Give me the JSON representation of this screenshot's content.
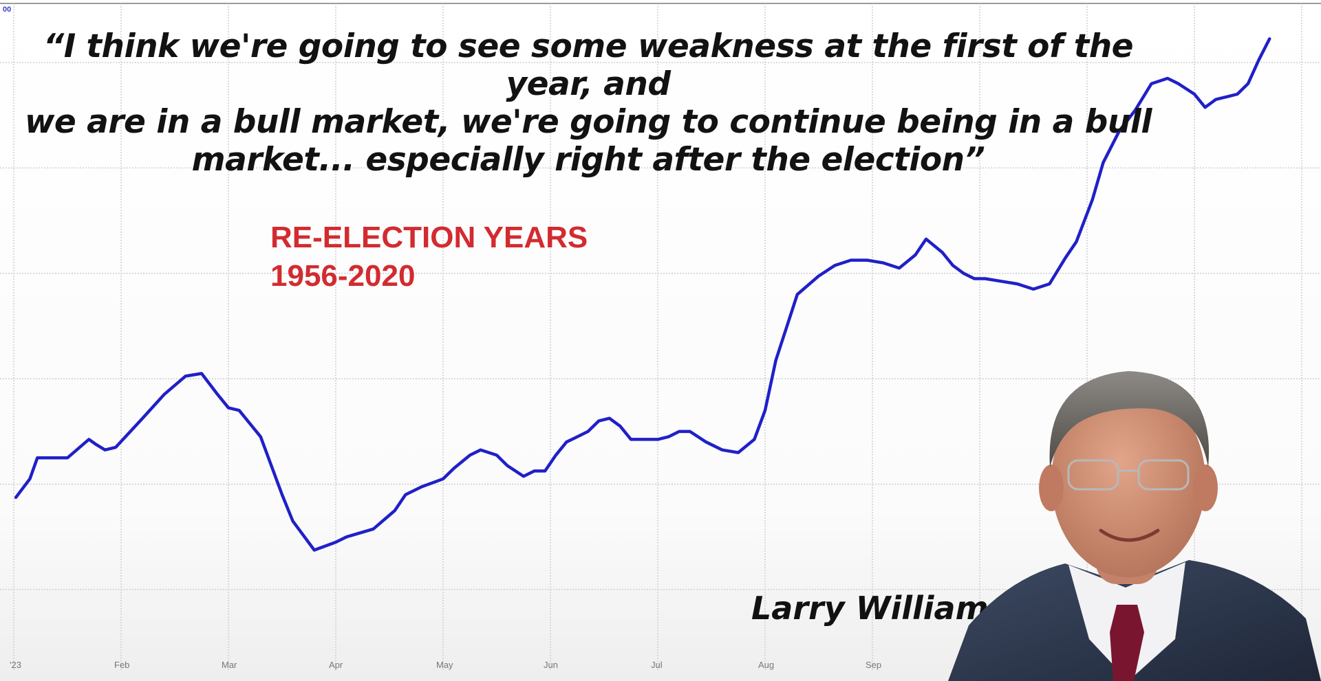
{
  "quote": {
    "lines": [
      "“I think we're going to see some weakness at the first of the year, and",
      "we are in a bull market, we're going to continue being in a bull",
      "market... especially right after the election”"
    ]
  },
  "speaker": {
    "name": "Larry Williams"
  },
  "chart_data": {
    "type": "line",
    "title": "",
    "xlabel": "",
    "ylabel": "",
    "annotation": [
      "RE-ELECTION YEARS",
      "1956-2020"
    ],
    "corner_tick_label": "00",
    "x_tick_labels": [
      "'23",
      "Feb",
      "Mar",
      "Apr",
      "May",
      "Jun",
      "Jul",
      "Aug",
      "Sep"
    ],
    "grid": true,
    "legend": "none",
    "xlim": [
      0,
      12
    ],
    "ylim": [
      0,
      100
    ],
    "series": [
      {
        "color": "#2020c8",
        "x": [
          0.02,
          0.15,
          0.22,
          0.5,
          0.7,
          0.77,
          0.85,
          0.95,
          1.2,
          1.4,
          1.6,
          1.75,
          1.9,
          2.0,
          2.1,
          2.3,
          2.5,
          2.6,
          2.8,
          3.0,
          3.1,
          3.35,
          3.55,
          3.65,
          3.8,
          4.0,
          4.1,
          4.25,
          4.35,
          4.5,
          4.6,
          4.75,
          4.85,
          4.95,
          5.05,
          5.15,
          5.25,
          5.35,
          5.45,
          5.55,
          5.65,
          5.75,
          5.85,
          6.0,
          6.1,
          6.2,
          6.3,
          6.45,
          6.6,
          6.75,
          6.9,
          7.0,
          7.1,
          7.3,
          7.5,
          7.65,
          7.8,
          7.95,
          8.1,
          8.25,
          8.4,
          8.5,
          8.65,
          8.75,
          8.85,
          8.95,
          9.05,
          9.2,
          9.35,
          9.5,
          9.65,
          9.8,
          9.9,
          10.05,
          10.15,
          10.3,
          10.45,
          10.6,
          10.75,
          10.85,
          11.0,
          11.1,
          11.2,
          11.3,
          11.4,
          11.5,
          11.6,
          11.7
        ],
        "y": [
          17.5,
          21,
          25,
          25,
          28.5,
          27.5,
          26.5,
          27,
          32.5,
          37,
          40.5,
          41,
          37,
          34.5,
          34,
          29,
          18,
          13,
          7.5,
          9,
          10,
          11.5,
          15,
          18,
          19.5,
          21,
          23,
          25.5,
          26.5,
          25.5,
          23.5,
          21.5,
          22.5,
          22.5,
          25.5,
          28,
          29,
          30,
          32,
          32.5,
          31,
          28.5,
          28.5,
          28.5,
          29,
          30,
          30,
          28,
          26.5,
          26,
          28.5,
          34,
          43.5,
          56,
          59.5,
          61.5,
          62.5,
          62.5,
          62,
          61,
          63.5,
          66.5,
          64,
          61.5,
          60,
          59,
          59,
          58.5,
          58,
          57,
          58,
          63,
          66,
          74,
          81,
          87,
          91,
          96,
          97,
          96,
          94,
          91.5,
          93,
          93.5,
          94,
          96,
          100.5,
          104.5
        ]
      }
    ]
  }
}
